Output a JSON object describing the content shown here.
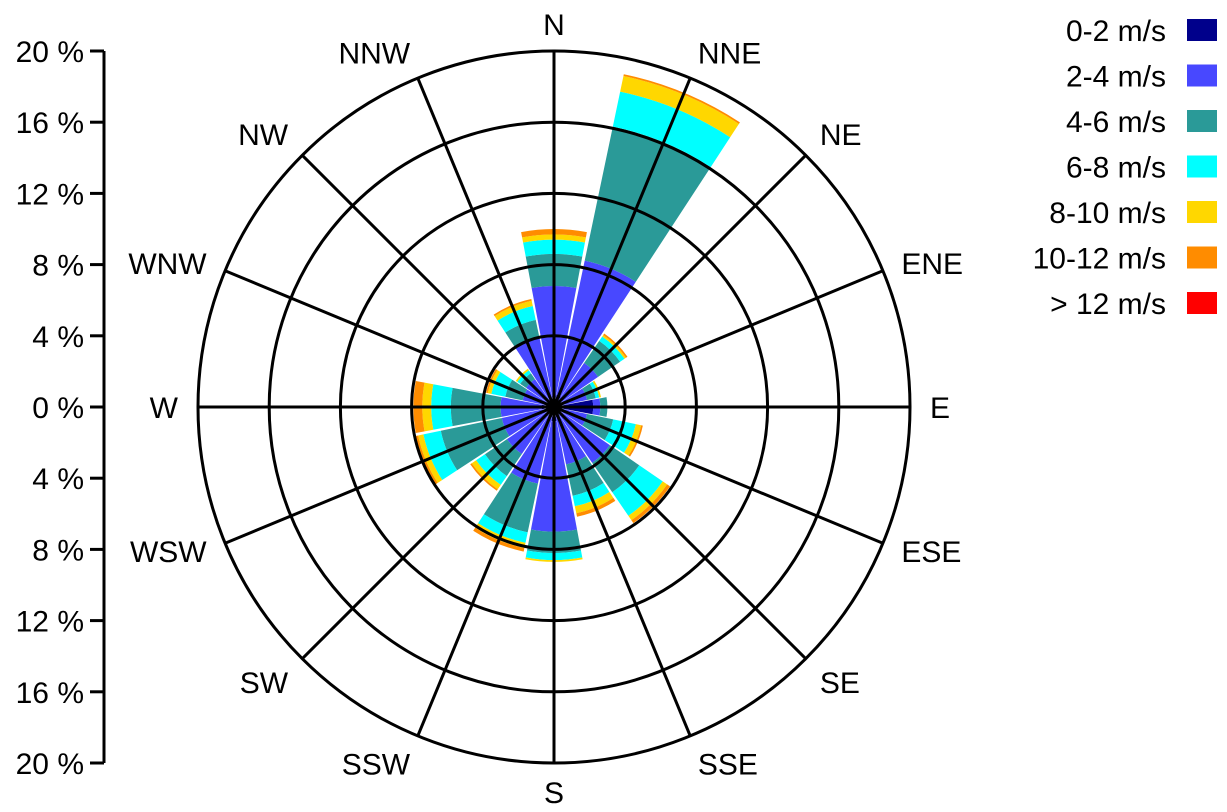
{
  "chart_data": {
    "type": "wind-rose",
    "title": "",
    "directions": [
      "N",
      "NNE",
      "NE",
      "ENE",
      "E",
      "ESE",
      "SE",
      "SSE",
      "S",
      "SSW",
      "SW",
      "WSW",
      "W",
      "WNW",
      "NW",
      "NNW"
    ],
    "rmax": 20,
    "rings": [
      4,
      8,
      12,
      16,
      20
    ],
    "y_ticks": [
      "20 %",
      "16 %",
      "12 %",
      "8 %",
      "4 %",
      "0 %",
      "4 %",
      "8 %",
      "12 %",
      "16 %",
      "20 %"
    ],
    "legend_position": "top-right",
    "series": [
      {
        "name": "0-2 m/s",
        "color": "#00008b",
        "values": [
          0.6,
          0.7,
          0.5,
          0.4,
          2.2,
          0.4,
          0.5,
          0.6,
          0.8,
          0.6,
          0.5,
          0.5,
          0.7,
          0.4,
          0.4,
          0.5
        ]
      },
      {
        "name": "2-4 m/s",
        "color": "#4848ff",
        "values": [
          6.2,
          7.7,
          2.5,
          1.5,
          0.4,
          1.5,
          3.3,
          2.7,
          6.2,
          3.8,
          2.7,
          2.5,
          2.3,
          1.4,
          1.5,
          3.5
        ]
      },
      {
        "name": "4-6 m/s",
        "color": "#2a9a98",
        "values": [
          1.8,
          7.7,
          1.5,
          0.5,
          0.4,
          1.5,
          2.0,
          1.8,
          1.2,
          2.8,
          1.5,
          3.5,
          2.8,
          1.0,
          0.4,
          1.0
        ]
      },
      {
        "name": "6-8 m/s",
        "color": "#00ffff",
        "values": [
          0.8,
          2.0,
          0.3,
          0.2,
          0.0,
          1.3,
          1.6,
          0.6,
          0.4,
          0.6,
          0.6,
          1.0,
          1.1,
          0.8,
          0.2,
          0.8
        ]
      },
      {
        "name": "8-10 m/s",
        "color": "#ffd700",
        "values": [
          0.3,
          0.9,
          0.1,
          0.1,
          0.0,
          0.3,
          0.3,
          0.4,
          0.1,
          0.3,
          0.3,
          0.3,
          0.5,
          0.2,
          0.1,
          0.3
        ]
      },
      {
        "name": "10-12 m/s",
        "color": "#ff8c00",
        "values": [
          0.3,
          0.1,
          0.1,
          0.0,
          0.0,
          0.1,
          0.2,
          0.2,
          0.0,
          0.2,
          0.1,
          0.2,
          0.5,
          0.1,
          0.0,
          0.1
        ]
      },
      {
        "name": "> 12 m/s",
        "color": "#ff0000",
        "values": [
          0.0,
          0.0,
          0.0,
          0.0,
          0.0,
          0.0,
          0.0,
          0.0,
          0.0,
          0.0,
          0.0,
          0.0,
          0.0,
          0.0,
          0.0,
          0.0
        ]
      }
    ]
  }
}
